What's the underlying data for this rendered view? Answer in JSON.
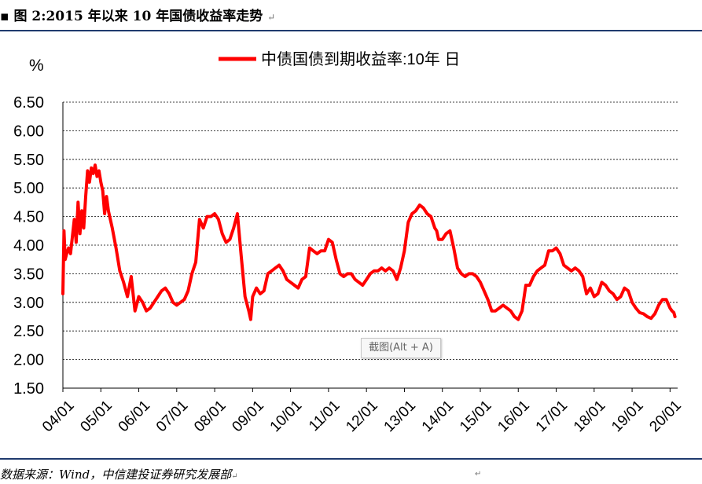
{
  "header": {
    "bullet": "▪",
    "title": "图 2:2015 年以来 10 年国债收益率走势",
    "return_mark": "↵"
  },
  "tooltip": {
    "text": "截图(Alt + A)"
  },
  "source": {
    "text": "数据来源：Wind，中信建投证券研究发展部",
    "return_mark": "↵",
    "stray_mark": "↵"
  },
  "chart_data": {
    "type": "line",
    "title": "",
    "xlabel": "",
    "ylabel": "%",
    "ylim": [
      1.5,
      6.5
    ],
    "yticks": [
      1.5,
      2.0,
      2.5,
      3.0,
      3.5,
      4.0,
      4.5,
      5.0,
      5.5,
      6.0,
      6.5
    ],
    "ytick_labels": [
      "1.50",
      "2.00",
      "2.50",
      "3.00",
      "3.50",
      "4.00",
      "4.50",
      "5.00",
      "5.50",
      "6.00",
      "6.50"
    ],
    "xlim": [
      2004.0,
      2020.2
    ],
    "xticks": [
      2004,
      2005,
      2006,
      2007,
      2008,
      2009,
      2010,
      2011,
      2012,
      2013,
      2014,
      2015,
      2016,
      2017,
      2018,
      2019,
      2020
    ],
    "xtick_labels": [
      "04/01",
      "05/01",
      "06/01",
      "07/01",
      "08/01",
      "09/01",
      "10/01",
      "11/01",
      "12/01",
      "13/01",
      "14/01",
      "15/01",
      "16/01",
      "17/01",
      "18/01",
      "19/01",
      "20/01"
    ],
    "grid": true,
    "legend": "top-center",
    "series": [
      {
        "name": "中债国债到期收益率:10年  日",
        "color": "#ff0000",
        "x": [
          2004.0,
          2004.03,
          2004.06,
          2004.1,
          2004.15,
          2004.2,
          2004.25,
          2004.3,
          2004.35,
          2004.4,
          2004.45,
          2004.5,
          2004.55,
          2004.6,
          2004.65,
          2004.7,
          2004.75,
          2004.8,
          2004.85,
          2004.9,
          2004.95,
          2005.0,
          2005.05,
          2005.1,
          2005.15,
          2005.2,
          2005.3,
          2005.4,
          2005.5,
          2005.6,
          2005.7,
          2005.8,
          2005.9,
          2006.0,
          2006.1,
          2006.2,
          2006.3,
          2006.4,
          2006.5,
          2006.6,
          2006.7,
          2006.8,
          2006.9,
          2007.0,
          2007.1,
          2007.2,
          2007.3,
          2007.4,
          2007.5,
          2007.6,
          2007.7,
          2007.8,
          2007.9,
          2008.0,
          2008.1,
          2008.2,
          2008.3,
          2008.4,
          2008.5,
          2008.6,
          2008.7,
          2008.8,
          2008.9,
          2008.95,
          2009.0,
          2009.1,
          2009.2,
          2009.3,
          2009.4,
          2009.5,
          2009.6,
          2009.7,
          2009.8,
          2009.9,
          2010.0,
          2010.1,
          2010.2,
          2010.3,
          2010.4,
          2010.5,
          2010.6,
          2010.7,
          2010.8,
          2010.9,
          2011.0,
          2011.1,
          2011.2,
          2011.3,
          2011.4,
          2011.5,
          2011.6,
          2011.7,
          2011.8,
          2011.9,
          2012.0,
          2012.1,
          2012.2,
          2012.3,
          2012.4,
          2012.5,
          2012.6,
          2012.7,
          2012.8,
          2012.9,
          2013.0,
          2013.1,
          2013.2,
          2013.3,
          2013.4,
          2013.5,
          2013.6,
          2013.7,
          2013.8,
          2013.85,
          2013.9,
          2014.0,
          2014.1,
          2014.2,
          2014.3,
          2014.4,
          2014.5,
          2014.6,
          2014.7,
          2014.8,
          2014.9,
          2015.0,
          2015.1,
          2015.2,
          2015.3,
          2015.4,
          2015.5,
          2015.6,
          2015.7,
          2015.8,
          2015.9,
          2016.0,
          2016.1,
          2016.2,
          2016.3,
          2016.4,
          2016.5,
          2016.6,
          2016.7,
          2016.8,
          2016.9,
          2017.0,
          2017.1,
          2017.2,
          2017.3,
          2017.4,
          2017.5,
          2017.6,
          2017.7,
          2017.8,
          2017.9,
          2018.0,
          2018.1,
          2018.2,
          2018.3,
          2018.4,
          2018.5,
          2018.6,
          2018.7,
          2018.8,
          2018.9,
          2019.0,
          2019.1,
          2019.2,
          2019.3,
          2019.4,
          2019.5,
          2019.6,
          2019.7,
          2019.8,
          2019.9,
          2020.0,
          2020.05,
          2020.1,
          2020.13
        ],
        "values": [
          3.15,
          4.25,
          3.75,
          3.85,
          3.95,
          3.85,
          4.15,
          4.45,
          4.05,
          4.75,
          4.2,
          4.6,
          4.3,
          4.85,
          5.3,
          5.1,
          5.35,
          5.25,
          5.4,
          5.2,
          5.3,
          5.1,
          4.95,
          4.55,
          4.85,
          4.6,
          4.3,
          3.95,
          3.55,
          3.35,
          3.1,
          3.45,
          2.85,
          3.1,
          3.0,
          2.85,
          2.9,
          3.0,
          3.1,
          3.2,
          3.25,
          3.15,
          3.0,
          2.95,
          3.0,
          3.05,
          3.2,
          3.5,
          3.7,
          4.45,
          4.3,
          4.5,
          4.5,
          4.55,
          4.45,
          4.2,
          4.05,
          4.1,
          4.3,
          4.55,
          3.8,
          3.1,
          2.85,
          2.7,
          3.1,
          3.25,
          3.15,
          3.2,
          3.5,
          3.55,
          3.6,
          3.65,
          3.55,
          3.4,
          3.35,
          3.3,
          3.25,
          3.4,
          3.45,
          3.95,
          3.9,
          3.85,
          3.9,
          3.9,
          4.1,
          4.05,
          3.75,
          3.5,
          3.45,
          3.5,
          3.5,
          3.4,
          3.35,
          3.3,
          3.4,
          3.5,
          3.55,
          3.55,
          3.6,
          3.55,
          3.6,
          3.55,
          3.4,
          3.6,
          3.9,
          4.4,
          4.55,
          4.6,
          4.7,
          4.65,
          4.55,
          4.5,
          4.3,
          4.25,
          4.1,
          4.1,
          4.2,
          4.25,
          3.95,
          3.6,
          3.5,
          3.45,
          3.5,
          3.5,
          3.45,
          3.35,
          3.2,
          3.05,
          2.85,
          2.85,
          2.9,
          2.95,
          2.9,
          2.85,
          2.75,
          2.7,
          2.85,
          3.3,
          3.3,
          3.45,
          3.55,
          3.6,
          3.65,
          3.9,
          3.9,
          3.95,
          3.85,
          3.65,
          3.6,
          3.55,
          3.6,
          3.55,
          3.45,
          3.15,
          3.25,
          3.1,
          3.15,
          3.35,
          3.3,
          3.2,
          3.15,
          3.05,
          3.1,
          3.25,
          3.2,
          3.0,
          2.9,
          2.82,
          2.8,
          2.75,
          2.72,
          2.8,
          2.95,
          3.05,
          3.05,
          2.9,
          2.85,
          2.82,
          2.75
        ]
      }
    ]
  }
}
